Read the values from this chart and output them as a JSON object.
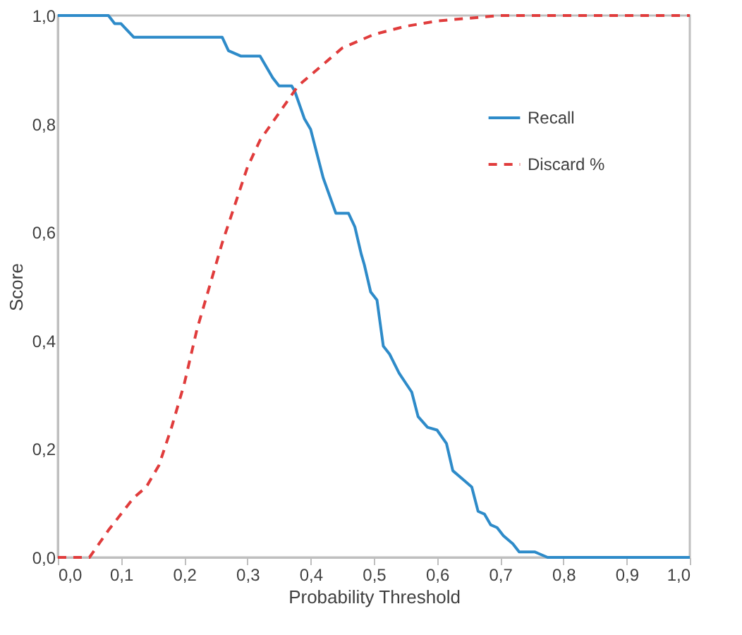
{
  "chart_data": {
    "type": "line",
    "xlabel": "Probability Threshold",
    "ylabel": "Score",
    "xlim": [
      0,
      1
    ],
    "ylim": [
      0,
      1
    ],
    "xticks": [
      {
        "value": 0,
        "label": "0,0"
      },
      {
        "value": 0.1,
        "label": "0,1"
      },
      {
        "value": 0.2,
        "label": "0,2"
      },
      {
        "value": 0.3,
        "label": "0,3"
      },
      {
        "value": 0.4,
        "label": "0,4"
      },
      {
        "value": 0.5,
        "label": "0,5"
      },
      {
        "value": 0.6,
        "label": "0,6"
      },
      {
        "value": 0.7,
        "label": "0,7"
      },
      {
        "value": 0.8,
        "label": "0,8"
      },
      {
        "value": 0.9,
        "label": "0,9"
      },
      {
        "value": 1,
        "label": "1,0"
      }
    ],
    "yticks": [
      {
        "value": 0,
        "label": "0,0"
      },
      {
        "value": 0.2,
        "label": "0,2"
      },
      {
        "value": 0.4,
        "label": "0,4"
      },
      {
        "value": 0.6,
        "label": "0,6"
      },
      {
        "value": 0.8,
        "label": "0,8"
      },
      {
        "value": 1,
        "label": "1,0"
      }
    ],
    "grid": false,
    "legend": "top right",
    "marker": "none",
    "series": [
      {
        "name": "Recall",
        "color": "#2e8bc9",
        "line_style": "solid",
        "x": [
          0,
          0.08,
          0.09,
          0.1,
          0.12,
          0.26,
          0.27,
          0.29,
          0.32,
          0.34,
          0.35,
          0.37,
          0.375,
          0.39,
          0.4,
          0.42,
          0.44,
          0.46,
          0.47,
          0.48,
          0.485,
          0.495,
          0.505,
          0.515,
          0.525,
          0.54,
          0.56,
          0.57,
          0.585,
          0.6,
          0.615,
          0.625,
          0.645,
          0.655,
          0.665,
          0.675,
          0.685,
          0.695,
          0.705,
          0.72,
          0.73,
          0.755,
          0.775,
          1.0
        ],
        "values": [
          1,
          1,
          0.985,
          0.985,
          0.96,
          0.96,
          0.935,
          0.925,
          0.925,
          0.885,
          0.87,
          0.87,
          0.86,
          0.81,
          0.79,
          0.7,
          0.635,
          0.635,
          0.61,
          0.56,
          0.54,
          0.49,
          0.475,
          0.39,
          0.375,
          0.34,
          0.305,
          0.26,
          0.24,
          0.235,
          0.21,
          0.16,
          0.14,
          0.13,
          0.085,
          0.08,
          0.06,
          0.055,
          0.04,
          0.025,
          0.01,
          0.01,
          0,
          0
        ]
      },
      {
        "name": "Discard %",
        "color": "#e03c3c",
        "line_style": "dashed",
        "x": [
          0,
          0.05,
          0.08,
          0.1,
          0.12,
          0.14,
          0.16,
          0.18,
          0.2,
          0.22,
          0.24,
          0.26,
          0.28,
          0.3,
          0.32,
          0.35,
          0.38,
          0.42,
          0.45,
          0.5,
          0.55,
          0.6,
          0.65,
          0.7,
          1.0
        ],
        "values": [
          0,
          0,
          0.05,
          0.08,
          0.11,
          0.13,
          0.17,
          0.24,
          0.32,
          0.42,
          0.5,
          0.58,
          0.65,
          0.72,
          0.77,
          0.82,
          0.87,
          0.91,
          0.94,
          0.965,
          0.98,
          0.99,
          0.995,
          1,
          1
        ]
      }
    ]
  }
}
